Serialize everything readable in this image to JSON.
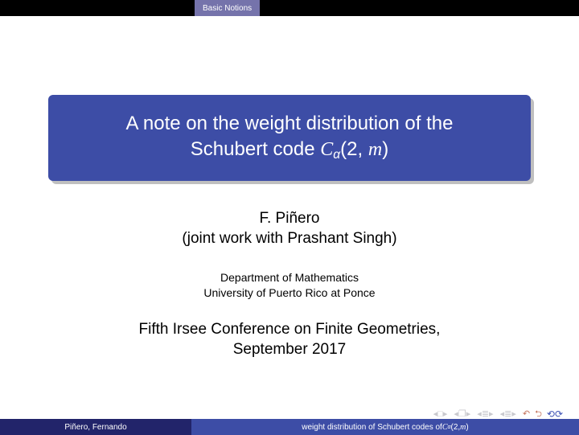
{
  "topbar": {
    "tab": "Basic Notions"
  },
  "title": {
    "line1": "A note on the weight distribution of the",
    "line2_prefix": "Schubert code ",
    "code_symbol": "C",
    "alpha": "α",
    "args": "(2, ",
    "m": "m",
    "close": ")",
    "bg_color": "#3d4da6",
    "text_color": "#ffffff"
  },
  "author": "F. Piñero",
  "joint": "(joint work with Prashant Singh)",
  "department": {
    "line1": "Department of Mathematics",
    "line2": "University of Puerto Rico at Ponce"
  },
  "conference": {
    "line1": "Fifth Irsee Conference on Finite Geometries,",
    "line2": "September 2017"
  },
  "nav": {
    "first_l": "◂",
    "first_box": "□",
    "first_r": "▸",
    "page_l": "◂",
    "page_box": "❐",
    "page_r": "▸",
    "sub_l": "◂",
    "sub_bar": "≣",
    "sub_r": "▸",
    "sec_l": "◂",
    "sec_bar": "≣",
    "sec_r": "▸",
    "back": "↶",
    "search": "⮌",
    "loop": "⟲⟳"
  },
  "footer": {
    "author_short": "Piñero, Fernando",
    "title_short_prefix": "weight distribution of Schubert codes of ",
    "c": "C",
    "alpha": "α",
    "args": "(2, ",
    "m": "m",
    "close": ")",
    "left_bg": "#22246a",
    "right_bg": "#3d4da6"
  }
}
